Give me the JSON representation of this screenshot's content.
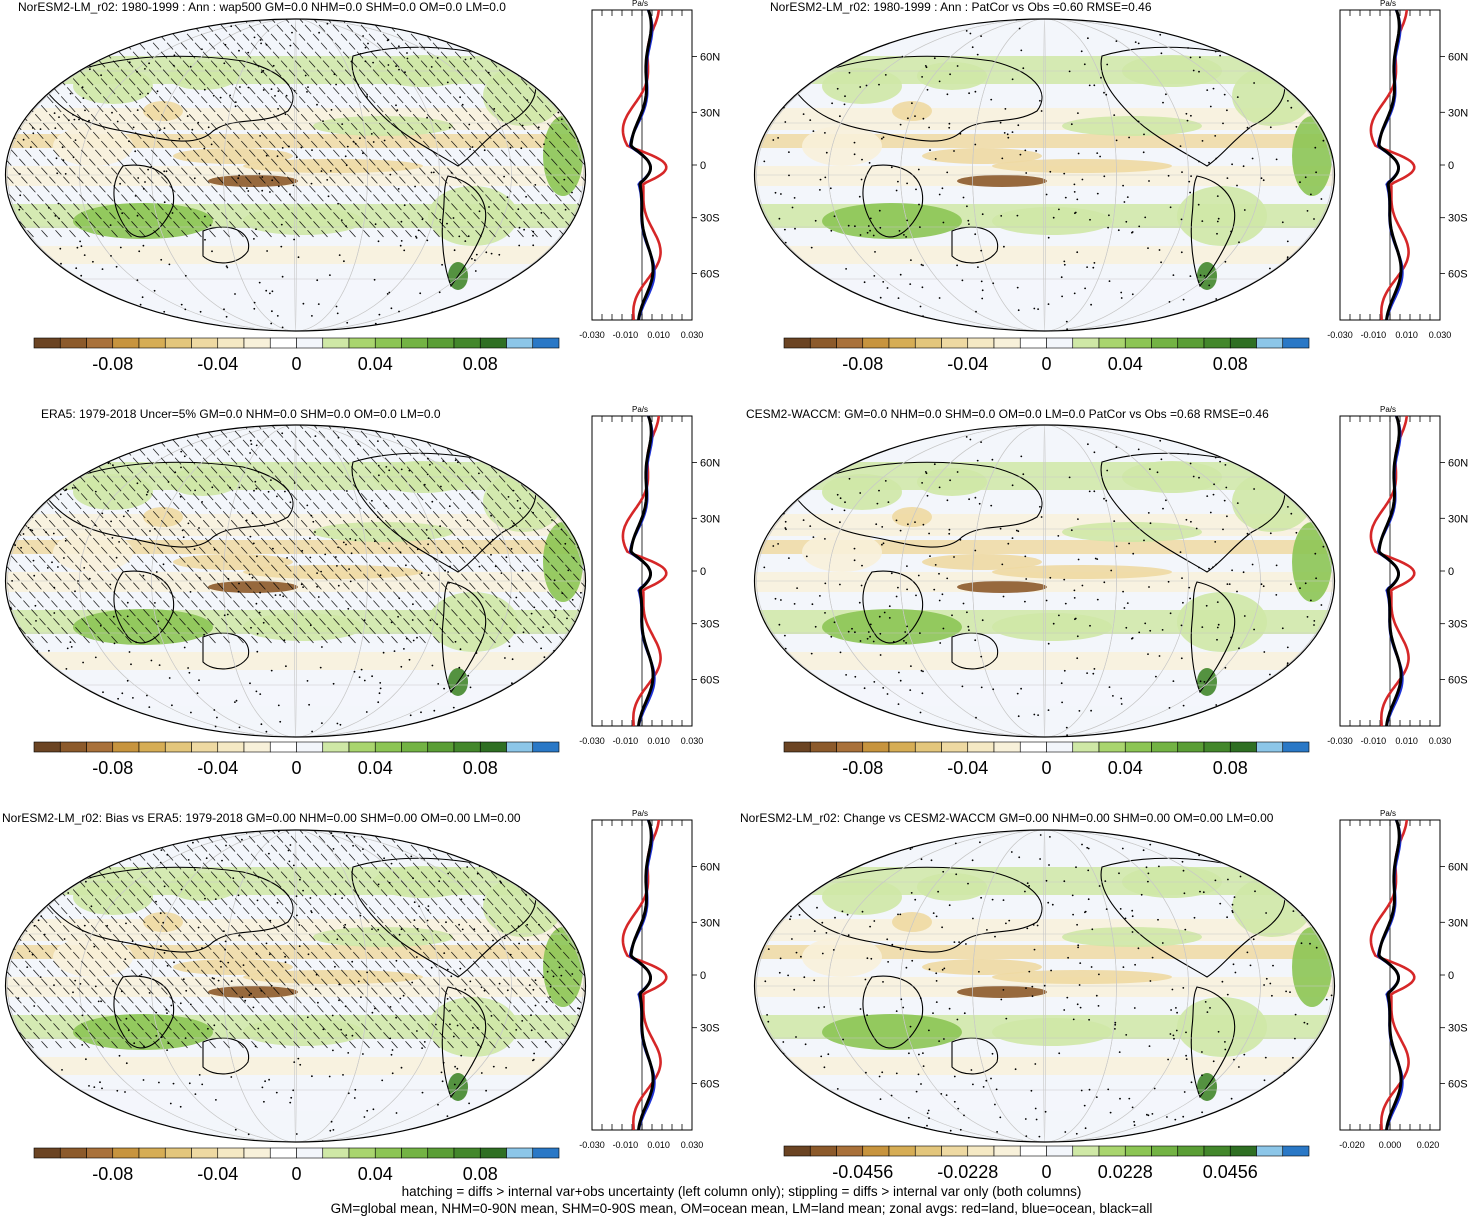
{
  "colors": {
    "scale": [
      "#6b4423",
      "#8c5a2b",
      "#a9713a",
      "#c7943e",
      "#d6ad55",
      "#e3c67c",
      "#eed9a2",
      "#f5e9c4",
      "#f8f1da",
      "#ffffff",
      "#f3f6fb",
      "#cfe8a6",
      "#a9d56e",
      "#8cc554",
      "#73b344",
      "#5a9e35",
      "#43872b",
      "#2f6f23",
      "#8cc6e8",
      "#2a78c6"
    ],
    "land": "#d62728",
    "ocean": "#1f33d6",
    "all": "#000000"
  },
  "panels": [
    {
      "title": "NorESM2-LM_r02: 1980-1999 : Ann : wap500 GM=0.0 NHM=0.0 SHM=0.0 OM=0.0 LM=0.0",
      "hatching": true,
      "cbar_ticks": [
        "-0.08",
        "-0.04",
        "0",
        "0.04",
        "0.08"
      ],
      "zonal_unit": "Pa/s",
      "zonal_xticks": [
        "-0.030",
        "-0.010",
        "0.010",
        "0.030"
      ],
      "zonal_yticks": [
        "60N",
        "30N",
        "0",
        "30S",
        "60S"
      ]
    },
    {
      "title": "NorESM2-LM_r02: 1980-1999 : Ann : PatCor vs Obs =0.60 RMSE=0.46",
      "hatching": false,
      "cbar_ticks": [
        "-0.08",
        "-0.04",
        "0",
        "0.04",
        "0.08"
      ],
      "zonal_unit": "Pa/s",
      "zonal_xticks": [
        "-0.030",
        "-0.010",
        "0.010",
        "0.030"
      ],
      "zonal_yticks": [
        "60N",
        "30N",
        "0",
        "30S",
        "60S"
      ]
    },
    {
      "title": "ERA5: 1979-2018 Uncer=5% GM=0.0 NHM=0.0 SHM=0.0 OM=0.0 LM=0.0",
      "hatching": true,
      "cbar_ticks": [
        "-0.08",
        "-0.04",
        "0",
        "0.04",
        "0.08"
      ],
      "zonal_unit": "Pa/s",
      "zonal_xticks": [
        "-0.030",
        "-0.010",
        "0.010",
        "0.030"
      ],
      "zonal_yticks": [
        "60N",
        "30N",
        "0",
        "30S",
        "60S"
      ]
    },
    {
      "title": "CESM2-WACCM: GM=0.0 NHM=0.0 SHM=0.0 OM=0.0 LM=0.0 PatCor vs Obs =0.68 RMSE=0.46",
      "hatching": false,
      "cbar_ticks": [
        "-0.08",
        "-0.04",
        "0",
        "0.04",
        "0.08"
      ],
      "zonal_unit": "Pa/s",
      "zonal_xticks": [
        "-0.030",
        "-0.010",
        "0.010",
        "0.030"
      ],
      "zonal_yticks": [
        "60N",
        "30N",
        "0",
        "30S",
        "60S"
      ]
    },
    {
      "title": "NorESM2-LM_r02: Bias vs ERA5: 1979-2018 GM=0.00 NHM=0.00 SHM=0.00 OM=0.00 LM=0.00",
      "hatching": true,
      "cbar_ticks": [
        "-0.08",
        "-0.04",
        "0",
        "0.04",
        "0.08"
      ],
      "zonal_unit": "Pa/s",
      "zonal_xticks": [
        "-0.030",
        "-0.010",
        "0.010",
        "0.030"
      ],
      "zonal_yticks": [
        "60N",
        "30N",
        "0",
        "30S",
        "60S"
      ]
    },
    {
      "title": "NorESM2-LM_r02: Change vs CESM2-WACCM GM=0.00 NHM=0.00 SHM=0.00 OM=0.00 LM=0.00",
      "hatching": false,
      "cbar_ticks": [
        "-0.0456",
        "-0.0228",
        "0",
        "0.0228",
        "0.0456"
      ],
      "zonal_unit": "Pa/s",
      "zonal_xticks": [
        "-0.020",
        "0.000",
        "0.020"
      ],
      "zonal_yticks": [
        "60N",
        "30N",
        "0",
        "30S",
        "60S"
      ]
    }
  ],
  "footer": {
    "line1": "hatching = diffs > internal var+obs uncertainty (left column only); stippling = diffs > internal var only (both columns)",
    "line2": "GM=global mean, NHM=0-90N mean, SHM=0-90S mean, OM=ocean mean, LM=land mean; zonal avgs: red=land, blue=ocean, black=all"
  }
}
